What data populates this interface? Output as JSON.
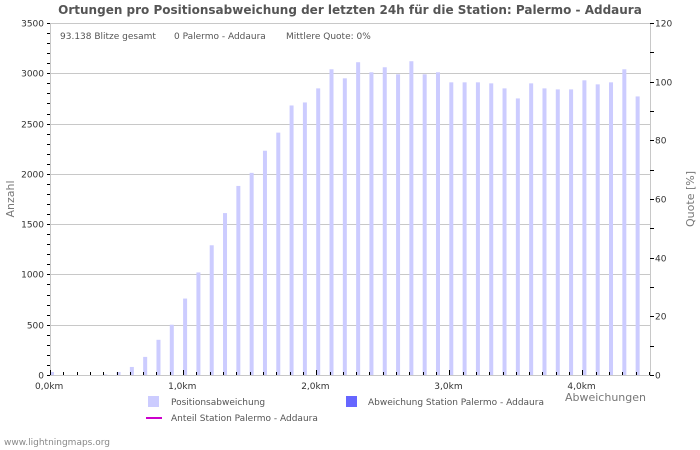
{
  "title": "Ortungen pro Positionsabweichung der letzten 24h für die Station: Palermo - Addaura",
  "info": {
    "total": "93.138 Blitze gesamt",
    "station_count": "0 Palermo - Addaura",
    "mean_quote": "Mittlere Quote: 0%"
  },
  "axes": {
    "y_left_label": "Anzahl",
    "y_right_label": "Quote [%]",
    "x_label": "Abweichungen"
  },
  "legend": {
    "items": [
      {
        "label": "Positionsabweichung",
        "color": "#ccccff",
        "kind": "box"
      },
      {
        "label": "Abweichung Station Palermo - Addaura",
        "color": "#6666ff",
        "kind": "box"
      },
      {
        "label": "Anteil Station Palermo - Addaura",
        "color": "#cc00cc",
        "kind": "line"
      }
    ]
  },
  "footer": "www.lightningmaps.org",
  "colors": {
    "bar": "#ccccff",
    "station_bar": "#6666ff",
    "quote_line": "#cc00cc",
    "grid": "#c8c8c8",
    "axis": "#c8c8c8",
    "text": "#333333"
  },
  "chart_data": {
    "type": "bar",
    "title": "Ortungen pro Positionsabweichung der letzten 24h für die Station: Palermo - Addaura",
    "xlabel": "Abweichungen",
    "ylabel": "Anzahl",
    "y2label": "Quote [%]",
    "ylim": [
      0,
      3500
    ],
    "y2lim": [
      0,
      120
    ],
    "yticks": [
      0,
      500,
      1000,
      1500,
      2000,
      2500,
      3000,
      3500
    ],
    "y2ticks": [
      0,
      20,
      40,
      60,
      80,
      100,
      120
    ],
    "xticks": [
      "0,0km",
      "1,0km",
      "2,0km",
      "3,0km",
      "4,0km"
    ],
    "grid": true,
    "legend_position": "bottom",
    "categories": [
      "0.0",
      "0.1",
      "0.2",
      "0.3",
      "0.4",
      "0.5",
      "0.6",
      "0.7",
      "0.8",
      "0.9",
      "1.0",
      "1.1",
      "1.2",
      "1.3",
      "1.4",
      "1.5",
      "1.6",
      "1.7",
      "1.8",
      "1.9",
      "2.0",
      "2.1",
      "2.2",
      "2.3",
      "2.4",
      "2.5",
      "2.6",
      "2.7",
      "2.8",
      "2.9",
      "3.0",
      "3.1",
      "3.2",
      "3.3",
      "3.4",
      "3.5",
      "3.6",
      "3.7",
      "3.8",
      "3.9",
      "4.0",
      "4.1",
      "4.2",
      "4.3",
      "4.4"
    ],
    "series": [
      {
        "name": "Positionsabweichung",
        "values": [
          30,
          0,
          0,
          0,
          5,
          30,
          80,
          180,
          350,
          500,
          760,
          1020,
          1290,
          1610,
          1880,
          2010,
          2230,
          2410,
          2680,
          2710,
          2850,
          3040,
          2950,
          3110,
          3010,
          3060,
          2990,
          3120,
          2990,
          3010,
          2910,
          2910,
          2910,
          2900,
          2850,
          2750,
          2900,
          2850,
          2840,
          2840,
          2930,
          2890,
          2910,
          3040,
          2770
        ]
      },
      {
        "name": "Abweichung Station Palermo - Addaura",
        "values": [
          0,
          0,
          0,
          0,
          0,
          0,
          0,
          0,
          0,
          0,
          0,
          0,
          0,
          0,
          0,
          0,
          0,
          0,
          0,
          0,
          0,
          0,
          0,
          0,
          0,
          0,
          0,
          0,
          0,
          0,
          0,
          0,
          0,
          0,
          0,
          0,
          0,
          0,
          0,
          0,
          0,
          0,
          0,
          0,
          0
        ]
      },
      {
        "name": "Anteil Station Palermo - Addaura",
        "values": []
      }
    ]
  }
}
